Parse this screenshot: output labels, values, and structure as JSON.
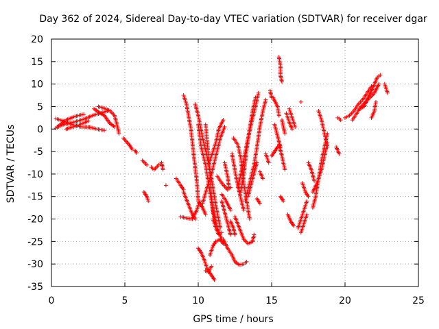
{
  "chart_data": {
    "type": "scatter",
    "title": "Day 362 of 2024, Sidereal Day-to-day VTEC variation (SDTVAR) for receiver dgar",
    "xlabel": "GPS time / hours",
    "ylabel": "SDTVAR / TECUs",
    "xlim": [
      0,
      25
    ],
    "ylim": [
      -35,
      20
    ],
    "x_ticks": [
      "0",
      "5",
      "10",
      "15",
      "20",
      "25"
    ],
    "y_ticks": [
      "20",
      "15",
      "10",
      "5",
      "0",
      "-5",
      "-10",
      "-15",
      "-20",
      "-25",
      "-30",
      "-35"
    ],
    "grid": true,
    "marker": "+",
    "color": "#ff0000",
    "tracks": [
      [
        [
          0.3,
          0.2
        ],
        [
          0.8,
          1.0
        ],
        [
          1.5,
          1.5
        ],
        [
          2.2,
          2.2
        ],
        [
          2.8,
          3.0
        ],
        [
          3.3,
          3.5
        ],
        [
          3.8,
          4.0
        ]
      ],
      [
        [
          0.3,
          2.3
        ],
        [
          0.8,
          1.8
        ],
        [
          1.4,
          1.0
        ],
        [
          2.0,
          0.5
        ],
        [
          2.6,
          0.4
        ],
        [
          3.1,
          0.0
        ],
        [
          3.6,
          -0.3
        ]
      ],
      [
        [
          0.4,
          0.5
        ],
        [
          1.0,
          2.0
        ],
        [
          1.6,
          2.8
        ],
        [
          2.2,
          3.3
        ]
      ],
      [
        [
          1.0,
          0.0
        ],
        [
          1.8,
          0.8
        ],
        [
          2.5,
          1.8
        ]
      ],
      [
        [
          2.9,
          4.5
        ],
        [
          3.2,
          3.8
        ],
        [
          3.6,
          3.0
        ],
        [
          4.0,
          1.2
        ],
        [
          4.3,
          0.5
        ]
      ],
      [
        [
          3.2,
          5.0
        ],
        [
          3.6,
          4.6
        ],
        [
          4.0,
          4.0
        ],
        [
          4.3,
          3.0
        ],
        [
          4.5,
          0.5
        ],
        [
          4.6,
          -1.0
        ]
      ],
      [
        [
          4.9,
          -2.0
        ],
        [
          5.1,
          -2.8
        ],
        [
          5.3,
          -3.5
        ],
        [
          5.5,
          -4.5
        ]
      ],
      [
        [
          5.7,
          -4.8
        ],
        [
          5.8,
          -5.3
        ]
      ],
      [
        [
          6.2,
          -7.0
        ],
        [
          6.5,
          -8.0
        ]
      ],
      [
        [
          6.8,
          -8.5
        ],
        [
          7.0,
          -9.0
        ],
        [
          7.3,
          -8.0
        ],
        [
          7.5,
          -7.5
        ],
        [
          7.6,
          -9.0
        ]
      ],
      [
        [
          7.8,
          -12.5
        ]
      ],
      [
        [
          6.3,
          -14.0
        ],
        [
          6.5,
          -15.0
        ],
        [
          6.6,
          -16.0
        ]
      ],
      [
        [
          8.5,
          -11.0
        ],
        [
          8.8,
          -12.5
        ],
        [
          9.0,
          -13.5
        ]
      ],
      [
        [
          8.8,
          -19.5
        ],
        [
          9.2,
          -19.8
        ],
        [
          9.6,
          -20.0
        ],
        [
          9.9,
          -18.0
        ],
        [
          10.1,
          -16.0
        ]
      ],
      [
        [
          9.0,
          7.5
        ],
        [
          9.2,
          5.5
        ],
        [
          9.5,
          0.0
        ],
        [
          9.7,
          -6.0
        ],
        [
          9.9,
          -11.5
        ],
        [
          10.0,
          -16.0
        ]
      ],
      [
        [
          9.0,
          -14.0
        ],
        [
          9.3,
          -16.5
        ],
        [
          9.6,
          -19.0
        ],
        [
          9.8,
          -20.0
        ]
      ],
      [
        [
          9.8,
          5.5
        ],
        [
          10.0,
          3.0
        ],
        [
          10.3,
          -2.0
        ],
        [
          10.6,
          -6.0
        ],
        [
          10.9,
          -11.0
        ],
        [
          11.2,
          -17.0
        ],
        [
          11.5,
          -22.0
        ]
      ],
      [
        [
          10.0,
          1.0
        ],
        [
          10.2,
          -4.0
        ],
        [
          10.5,
          -8.0
        ],
        [
          10.8,
          -14.0
        ],
        [
          11.0,
          -18.0
        ],
        [
          11.3,
          -22.0
        ],
        [
          11.6,
          -24.5
        ]
      ],
      [
        [
          10.0,
          -26.5
        ],
        [
          10.2,
          -27.5
        ],
        [
          10.4,
          -29.0
        ],
        [
          10.6,
          -31.0
        ],
        [
          10.8,
          -32.0
        ],
        [
          11.0,
          -33.0
        ],
        [
          11.1,
          -33.5
        ]
      ],
      [
        [
          10.5,
          -31.5
        ],
        [
          10.7,
          -31.8
        ],
        [
          10.9,
          -30.5
        ]
      ],
      [
        [
          10.1,
          -16.5
        ],
        [
          10.3,
          -17.5
        ],
        [
          10.5,
          -19.0
        ]
      ],
      [
        [
          10.5,
          1.0
        ],
        [
          10.6,
          -2.5
        ],
        [
          10.7,
          -6.0
        ],
        [
          10.8,
          -10.0
        ],
        [
          10.9,
          -15.0
        ],
        [
          11.0,
          -18.5
        ],
        [
          11.2,
          -21.0
        ]
      ],
      [
        [
          10.7,
          -8.0
        ],
        [
          10.9,
          -6.0
        ],
        [
          11.2,
          -3.0
        ],
        [
          11.4,
          0.0
        ],
        [
          11.7,
          2.0
        ]
      ],
      [
        [
          10.3,
          -16.5
        ],
        [
          10.6,
          -13.0
        ],
        [
          10.9,
          -10.0
        ],
        [
          11.2,
          -6.0
        ],
        [
          11.5,
          -2.0
        ],
        [
          11.8,
          0.5
        ]
      ],
      [
        [
          10.8,
          -28.0
        ],
        [
          11.0,
          -26.0
        ],
        [
          11.2,
          -25.0
        ],
        [
          11.5,
          -24.5
        ],
        [
          11.7,
          -25.5
        ]
      ],
      [
        [
          11.0,
          -20.0
        ],
        [
          11.2,
          -22.0
        ],
        [
          11.4,
          -23.5
        ],
        [
          11.6,
          -23.0
        ]
      ],
      [
        [
          11.3,
          -10.5
        ],
        [
          11.6,
          -12.0
        ],
        [
          12.0,
          -13.5
        ],
        [
          12.2,
          -13.0
        ]
      ],
      [
        [
          11.6,
          -14.5
        ],
        [
          11.9,
          -16.0
        ],
        [
          12.2,
          -18.0
        ]
      ],
      [
        [
          11.6,
          -16.0
        ],
        [
          11.8,
          -18.5
        ],
        [
          12.0,
          -21.0
        ],
        [
          12.2,
          -23.5
        ]
      ],
      [
        [
          11.7,
          -24.5
        ],
        [
          12.0,
          -26.5
        ],
        [
          12.3,
          -28.0
        ],
        [
          12.5,
          -29.5
        ],
        [
          12.8,
          -30.2
        ],
        [
          13.1,
          -30.0
        ],
        [
          13.3,
          -29.5
        ]
      ],
      [
        [
          11.8,
          -7.5
        ],
        [
          12.0,
          -10.5
        ],
        [
          12.1,
          -13.0
        ]
      ],
      [
        [
          12.2,
          -20.5
        ],
        [
          12.4,
          -22.0
        ],
        [
          12.5,
          -23.5
        ]
      ],
      [
        [
          12.3,
          -5.5
        ],
        [
          12.6,
          -11.0
        ],
        [
          12.9,
          -15.5
        ],
        [
          13.1,
          -18.0
        ]
      ],
      [
        [
          12.5,
          -19.5
        ],
        [
          12.8,
          -22.0
        ],
        [
          13.1,
          -24.5
        ],
        [
          13.4,
          -25.5
        ],
        [
          13.7,
          -25.0
        ],
        [
          13.8,
          -23.5
        ]
      ],
      [
        [
          12.4,
          -2.0
        ],
        [
          12.7,
          -3.5
        ],
        [
          12.9,
          -6.5
        ],
        [
          13.1,
          -12.0
        ],
        [
          13.3,
          -16.0
        ],
        [
          13.5,
          -20.0
        ]
      ],
      [
        [
          12.7,
          -13.0
        ],
        [
          13.0,
          -8.5
        ],
        [
          13.3,
          -3.5
        ],
        [
          13.6,
          1.0
        ],
        [
          13.9,
          5.0
        ],
        [
          14.1,
          8.0
        ]
      ],
      [
        [
          12.9,
          -14.0
        ],
        [
          13.1,
          -10.0
        ],
        [
          13.3,
          -4.5
        ],
        [
          13.5,
          0.0
        ],
        [
          13.7,
          4.0
        ],
        [
          13.9,
          7.0
        ]
      ],
      [
        [
          13.2,
          -16.0
        ],
        [
          13.5,
          -12.0
        ],
        [
          13.8,
          -8.0
        ],
        [
          14.0,
          -4.0
        ],
        [
          14.2,
          0.5
        ],
        [
          14.4,
          4.0
        ],
        [
          14.6,
          6.5
        ]
      ],
      [
        [
          13.4,
          -15.0
        ],
        [
          13.7,
          -11.0
        ],
        [
          14.0,
          -7.5
        ]
      ],
      [
        [
          14.2,
          -9.5
        ],
        [
          14.4,
          -11.0
        ]
      ],
      [
        [
          14.0,
          -15.5
        ],
        [
          14.2,
          -16.5
        ]
      ],
      [
        [
          14.6,
          -5.5
        ],
        [
          14.8,
          -7.5
        ]
      ],
      [
        [
          14.9,
          8.5
        ],
        [
          15.0,
          7.0
        ]
      ],
      [
        [
          15.1,
          7.0
        ],
        [
          15.4,
          5.0
        ],
        [
          15.5,
          3.0
        ]
      ],
      [
        [
          15.0,
          -6.0
        ],
        [
          15.2,
          -5.0
        ],
        [
          15.4,
          -4.0
        ]
      ],
      [
        [
          15.5,
          -3.5
        ],
        [
          15.7,
          -6.0
        ],
        [
          15.9,
          -9.0
        ]
      ],
      [
        [
          15.2,
          1.0
        ],
        [
          15.4,
          -1.5
        ],
        [
          15.6,
          -4.0
        ]
      ],
      [
        [
          15.5,
          16.0
        ],
        [
          15.6,
          14.0
        ],
        [
          15.6,
          12.0
        ],
        [
          15.7,
          10.5
        ]
      ],
      [
        [
          15.7,
          2.0
        ],
        [
          15.8,
          0.5
        ],
        [
          15.9,
          -1.0
        ]
      ],
      [
        [
          16.0,
          3.5
        ],
        [
          16.2,
          1.5
        ],
        [
          16.4,
          0.0
        ]
      ],
      [
        [
          16.2,
          4.5
        ],
        [
          16.4,
          2.5
        ],
        [
          16.6,
          0.5
        ]
      ],
      [
        [
          15.6,
          -15.0
        ],
        [
          15.8,
          -16.0
        ]
      ],
      [
        [
          16.1,
          -19.0
        ],
        [
          16.3,
          -20.5
        ],
        [
          16.5,
          -21.5
        ]
      ],
      [
        [
          16.8,
          -22.0
        ],
        [
          17.0,
          -20.0
        ],
        [
          17.2,
          -18.0
        ],
        [
          17.4,
          -16.0
        ]
      ],
      [
        [
          17.0,
          -23.0
        ],
        [
          17.2,
          -21.0
        ],
        [
          17.4,
          -19.0
        ]
      ],
      [
        [
          17.1,
          -12.0
        ],
        [
          17.3,
          -14.0
        ],
        [
          17.5,
          -15.0
        ]
      ],
      [
        [
          17.0,
          6.0
        ]
      ],
      [
        [
          17.5,
          -7.5
        ],
        [
          17.7,
          -9.0
        ],
        [
          17.9,
          -11.5
        ]
      ],
      [
        [
          17.8,
          -14.0
        ],
        [
          18.1,
          -12.0
        ],
        [
          18.4,
          -9.0
        ],
        [
          18.6,
          -6.0
        ],
        [
          18.8,
          -3.0
        ]
      ],
      [
        [
          17.8,
          -17.5
        ],
        [
          18.0,
          -15.0
        ],
        [
          18.2,
          -11.0
        ],
        [
          18.4,
          -7.0
        ],
        [
          18.6,
          -4.0
        ],
        [
          18.8,
          -1.0
        ]
      ],
      [
        [
          18.2,
          4.0
        ],
        [
          18.4,
          2.0
        ],
        [
          18.6,
          -1.0
        ],
        [
          18.8,
          -4.0
        ]
      ],
      [
        [
          19.4,
          -4.0
        ],
        [
          19.6,
          -5.5
        ]
      ],
      [
        [
          19.5,
          2.5
        ],
        [
          19.7,
          2.0
        ]
      ],
      [
        [
          20.0,
          2.5
        ],
        [
          20.3,
          3.0
        ],
        [
          20.6,
          4.0
        ],
        [
          20.9,
          5.5
        ],
        [
          21.2,
          6.5
        ],
        [
          21.5,
          8.0
        ],
        [
          21.8,
          9.5
        ]
      ],
      [
        [
          20.5,
          2.0
        ],
        [
          20.8,
          3.5
        ],
        [
          21.1,
          5.0
        ],
        [
          21.4,
          6.0
        ],
        [
          21.7,
          7.0
        ],
        [
          22.0,
          8.0
        ],
        [
          22.3,
          10.0
        ]
      ],
      [
        [
          21.0,
          4.5
        ],
        [
          21.3,
          5.0
        ],
        [
          21.5,
          6.5
        ],
        [
          21.8,
          8.5
        ],
        [
          22.0,
          10.0
        ],
        [
          22.2,
          11.5
        ],
        [
          22.4,
          12.0
        ]
      ],
      [
        [
          21.8,
          2.5
        ],
        [
          22.0,
          4.0
        ],
        [
          22.1,
          6.0
        ]
      ],
      [
        [
          22.7,
          10.0
        ],
        [
          22.8,
          9.0
        ],
        [
          22.9,
          8.0
        ]
      ]
    ]
  }
}
